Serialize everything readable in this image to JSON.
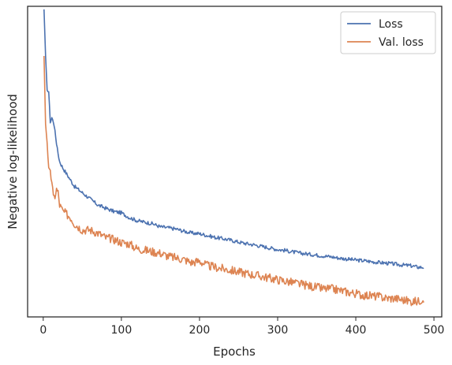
{
  "chart_data": {
    "type": "line",
    "xlabel": "Epochs",
    "ylabel": "Negative log-likelihood",
    "xlim": [
      -20,
      510
    ],
    "ylim": [
      0.0,
      1.0
    ],
    "x_ticks": [
      0,
      100,
      200,
      300,
      400,
      500
    ],
    "y_ticks_shown": false,
    "grid": false,
    "legend": "top-right",
    "series": [
      {
        "name": "Loss",
        "color": "#4c72b0",
        "x": [
          1,
          3,
          5,
          7,
          9,
          12,
          15,
          18,
          21,
          25,
          30,
          35,
          40,
          45,
          50,
          60,
          70,
          80,
          90,
          100,
          110,
          120,
          130,
          140,
          150,
          160,
          170,
          180,
          190,
          200,
          210,
          220,
          230,
          240,
          250,
          260,
          270,
          280,
          290,
          300,
          310,
          320,
          330,
          340,
          350,
          360,
          370,
          380,
          390,
          400,
          410,
          420,
          430,
          440,
          450,
          460,
          470,
          480,
          487
        ],
        "values": [
          0.99,
          0.84,
          0.73,
          0.72,
          0.63,
          0.64,
          0.6,
          0.54,
          0.5,
          0.48,
          0.46,
          0.44,
          0.42,
          0.41,
          0.4,
          0.38,
          0.36,
          0.35,
          0.34,
          0.335,
          0.32,
          0.31,
          0.305,
          0.3,
          0.29,
          0.287,
          0.283,
          0.276,
          0.27,
          0.268,
          0.262,
          0.256,
          0.252,
          0.247,
          0.241,
          0.236,
          0.232,
          0.227,
          0.222,
          0.217,
          0.214,
          0.209,
          0.205,
          0.202,
          0.199,
          0.196,
          0.193,
          0.189,
          0.186,
          0.183,
          0.181,
          0.178,
          0.175,
          0.173,
          0.17,
          0.167,
          0.165,
          0.16,
          0.16
        ]
      },
      {
        "name": "Val. loss",
        "color": "#dd8452",
        "x": [
          1,
          3,
          5,
          7,
          9,
          11,
          13,
          15,
          17,
          19,
          21,
          25,
          30,
          35,
          40,
          45,
          50,
          60,
          70,
          80,
          90,
          100,
          110,
          120,
          130,
          140,
          150,
          160,
          170,
          180,
          190,
          200,
          210,
          220,
          230,
          240,
          250,
          260,
          270,
          280,
          290,
          300,
          310,
          320,
          330,
          340,
          350,
          360,
          370,
          380,
          390,
          400,
          410,
          420,
          430,
          440,
          450,
          460,
          470,
          480,
          487
        ],
        "values": [
          0.84,
          0.62,
          0.56,
          0.47,
          0.46,
          0.44,
          0.38,
          0.39,
          0.41,
          0.4,
          0.36,
          0.34,
          0.33,
          0.32,
          0.3,
          0.29,
          0.28,
          0.28,
          0.27,
          0.255,
          0.25,
          0.24,
          0.235,
          0.22,
          0.215,
          0.21,
          0.205,
          0.195,
          0.19,
          0.185,
          0.175,
          0.18,
          0.165,
          0.16,
          0.155,
          0.15,
          0.145,
          0.14,
          0.135,
          0.13,
          0.125,
          0.12,
          0.115,
          0.11,
          0.105,
          0.1,
          0.095,
          0.09,
          0.09,
          0.085,
          0.08,
          0.075,
          0.07,
          0.068,
          0.065,
          0.06,
          0.06,
          0.055,
          0.05,
          0.05,
          0.06
        ]
      }
    ]
  }
}
